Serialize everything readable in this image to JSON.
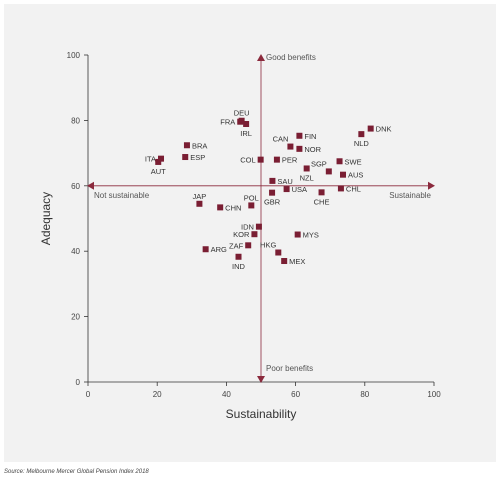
{
  "chart_data": {
    "type": "scatter",
    "xlabel": "Sustainability",
    "ylabel": "Adequacy",
    "xlim": [
      0,
      100
    ],
    "ylim": [
      0,
      100
    ],
    "xticks": [
      0,
      20,
      40,
      60,
      80,
      100
    ],
    "yticks": [
      0,
      20,
      40,
      60,
      80,
      100
    ],
    "grid": false,
    "marker_color": "#7a1e33",
    "axis_color": "#8b2a3d",
    "divider": {
      "x": 50,
      "y": 60
    },
    "annotations": {
      "top": "Good benefits",
      "bottom": "Poor benefits",
      "left": "Not sustainable",
      "right": "Sustainable"
    },
    "points": [
      {
        "label": "DNK",
        "x": 81.7,
        "y": 77.5,
        "label_pos": "right"
      },
      {
        "label": "NLD",
        "x": 79.0,
        "y": 75.8,
        "label_pos": "below"
      },
      {
        "label": "DEU",
        "x": 44.4,
        "y": 79.9,
        "label_pos": "above"
      },
      {
        "label": "FRA",
        "x": 44.0,
        "y": 79.6,
        "label_pos": "left"
      },
      {
        "label": "IRL",
        "x": 45.7,
        "y": 78.9,
        "label_pos": "below"
      },
      {
        "label": "CAN",
        "x": 58.5,
        "y": 72.0,
        "label_pos": "above-left"
      },
      {
        "label": "FIN",
        "x": 61.1,
        "y": 75.3,
        "label_pos": "right"
      },
      {
        "label": "NOR",
        "x": 61.1,
        "y": 71.3,
        "label_pos": "right"
      },
      {
        "label": "BRA",
        "x": 28.6,
        "y": 72.4,
        "label_pos": "right"
      },
      {
        "label": "ESP",
        "x": 28.1,
        "y": 68.8,
        "label_pos": "right"
      },
      {
        "label": "ITA",
        "x": 21.1,
        "y": 68.3,
        "label_pos": "left"
      },
      {
        "label": "AUT",
        "x": 20.3,
        "y": 67.3,
        "label_pos": "below"
      },
      {
        "label": "COL",
        "x": 49.9,
        "y": 68.0,
        "label_pos": "left"
      },
      {
        "label": "PER",
        "x": 54.6,
        "y": 68.0,
        "label_pos": "right"
      },
      {
        "label": "SGP",
        "x": 69.6,
        "y": 64.4,
        "label_pos": "above-left"
      },
      {
        "label": "SWE",
        "x": 72.7,
        "y": 67.5,
        "label_pos": "right"
      },
      {
        "label": "NZL",
        "x": 63.2,
        "y": 65.3,
        "label_pos": "below"
      },
      {
        "label": "AUS",
        "x": 73.7,
        "y": 63.4,
        "label_pos": "right"
      },
      {
        "label": "SAU",
        "x": 53.3,
        "y": 61.5,
        "label_pos": "right"
      },
      {
        "label": "USA",
        "x": 57.4,
        "y": 59.0,
        "label_pos": "right"
      },
      {
        "label": "GBR",
        "x": 53.2,
        "y": 57.9,
        "label_pos": "below"
      },
      {
        "label": "CHE",
        "x": 67.5,
        "y": 58.0,
        "label_pos": "below"
      },
      {
        "label": "CHL",
        "x": 73.1,
        "y": 59.2,
        "label_pos": "right"
      },
      {
        "label": "JAP",
        "x": 32.2,
        "y": 54.5,
        "label_pos": "above"
      },
      {
        "label": "CHN",
        "x": 38.2,
        "y": 53.4,
        "label_pos": "right"
      },
      {
        "label": "POL",
        "x": 47.2,
        "y": 54.0,
        "label_pos": "above"
      },
      {
        "label": "IDN",
        "x": 49.4,
        "y": 47.5,
        "label_pos": "left"
      },
      {
        "label": "KOR",
        "x": 48.1,
        "y": 45.2,
        "label_pos": "left"
      },
      {
        "label": "MYS",
        "x": 60.6,
        "y": 45.1,
        "label_pos": "right"
      },
      {
        "label": "ZAF",
        "x": 46.3,
        "y": 41.8,
        "label_pos": "left"
      },
      {
        "label": "ARG",
        "x": 34.0,
        "y": 40.6,
        "label_pos": "right"
      },
      {
        "label": "HKG",
        "x": 55.0,
        "y": 39.6,
        "label_pos": "above-left"
      },
      {
        "label": "IND",
        "x": 43.5,
        "y": 38.3,
        "label_pos": "below"
      },
      {
        "label": "MEX",
        "x": 56.7,
        "y": 37.0,
        "label_pos": "right"
      }
    ]
  },
  "source": "Source: Melbourne Mercer Global Pension Index 2018"
}
